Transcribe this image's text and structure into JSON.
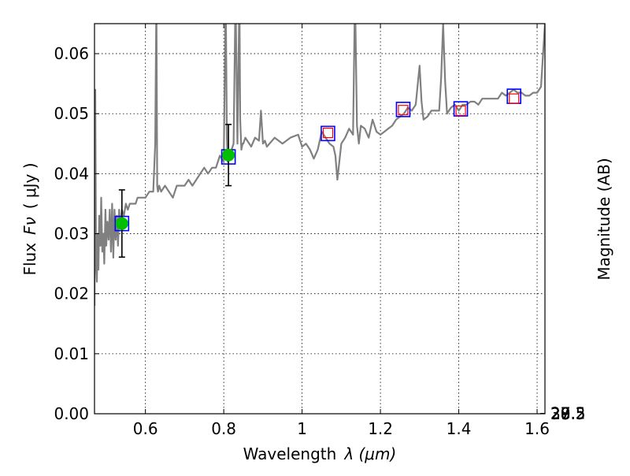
{
  "chart_data": {
    "type": "line",
    "xlabel_text": "Wavelength",
    "xlabel_math": "λ (μm)",
    "ylabel_text": "Flux",
    "ylabel_math": "Fν",
    "ylabel_unit": "( μJy )",
    "y2label": "Magnitude (AB)",
    "xlim": [
      0.47,
      1.62
    ],
    "ylim": [
      0.0,
      0.065
    ],
    "grid": true,
    "x_ticks": [
      {
        "value": 0.6,
        "label": "0.6"
      },
      {
        "value": 0.8,
        "label": "0.8"
      },
      {
        "value": 1.0,
        "label": "1"
      },
      {
        "value": 1.2,
        "label": "1.2"
      },
      {
        "value": 1.4,
        "label": "1.4"
      },
      {
        "value": 1.6,
        "label": "1.6"
      }
    ],
    "y_ticks": [
      {
        "value": 0.0,
        "label": "0.00"
      },
      {
        "value": 0.01,
        "label": "0.01"
      },
      {
        "value": 0.02,
        "label": "0.02"
      },
      {
        "value": 0.03,
        "label": "0.03"
      },
      {
        "value": 0.04,
        "label": "0.04"
      },
      {
        "value": 0.05,
        "label": "0.05"
      },
      {
        "value": 0.06,
        "label": "0.06"
      }
    ],
    "y2_ticks": [
      {
        "value": 27.0,
        "label": "27"
      },
      {
        "value": 27.2,
        "label": "27.2"
      },
      {
        "value": 27.5,
        "label": "27.5"
      },
      {
        "value": 28.0,
        "label": "28"
      },
      {
        "value": 28.5,
        "label": "28.5"
      },
      {
        "value": 29.0,
        "label": "29"
      },
      {
        "value": 30.0,
        "label": "30"
      }
    ],
    "series": [
      {
        "kind": "model-spectrum",
        "color": "#808080",
        "x": [
          0.47,
          0.472,
          0.474,
          0.476,
          0.478,
          0.48,
          0.482,
          0.485,
          0.487,
          0.49,
          0.493,
          0.495,
          0.498,
          0.5,
          0.503,
          0.506,
          0.509,
          0.512,
          0.515,
          0.518,
          0.521,
          0.524,
          0.527,
          0.53,
          0.533,
          0.536,
          0.54,
          0.545,
          0.55,
          0.555,
          0.56,
          0.565,
          0.57,
          0.575,
          0.58,
          0.59,
          0.6,
          0.61,
          0.62,
          0.625,
          0.628,
          0.63,
          0.632,
          0.635,
          0.64,
          0.65,
          0.66,
          0.67,
          0.68,
          0.69,
          0.7,
          0.71,
          0.72,
          0.73,
          0.74,
          0.75,
          0.76,
          0.77,
          0.78,
          0.79,
          0.8,
          0.805,
          0.808,
          0.81,
          0.815,
          0.82,
          0.825,
          0.83,
          0.835,
          0.84,
          0.842,
          0.845,
          0.848,
          0.85,
          0.855,
          0.86,
          0.87,
          0.88,
          0.89,
          0.895,
          0.9,
          0.905,
          0.91,
          0.93,
          0.95,
          0.97,
          0.99,
          1.0,
          1.01,
          1.02,
          1.03,
          1.04,
          1.05,
          1.06,
          1.07,
          1.08,
          1.085,
          1.09,
          1.1,
          1.11,
          1.12,
          1.13,
          1.135,
          1.14,
          1.145,
          1.15,
          1.16,
          1.17,
          1.18,
          1.19,
          1.2,
          1.21,
          1.22,
          1.23,
          1.24,
          1.25,
          1.26,
          1.27,
          1.28,
          1.29,
          1.3,
          1.305,
          1.31,
          1.32,
          1.33,
          1.34,
          1.35,
          1.355,
          1.36,
          1.365,
          1.37,
          1.38,
          1.39,
          1.4,
          1.41,
          1.42,
          1.43,
          1.44,
          1.45,
          1.46,
          1.47,
          1.48,
          1.49,
          1.5,
          1.51,
          1.52,
          1.53,
          1.54,
          1.55,
          1.56,
          1.57,
          1.58,
          1.59,
          1.6,
          1.61,
          1.62
        ],
        "y": [
          0.018,
          0.054,
          0.025,
          0.022,
          0.03,
          0.024,
          0.033,
          0.028,
          0.036,
          0.027,
          0.03,
          0.025,
          0.034,
          0.028,
          0.032,
          0.029,
          0.034,
          0.027,
          0.035,
          0.026,
          0.034,
          0.029,
          0.033,
          0.028,
          0.034,
          0.031,
          0.034,
          0.033,
          0.035,
          0.034,
          0.035,
          0.035,
          0.035,
          0.035,
          0.036,
          0.036,
          0.036,
          0.037,
          0.037,
          0.045,
          0.07,
          0.038,
          0.037,
          0.038,
          0.037,
          0.038,
          0.037,
          0.036,
          0.038,
          0.038,
          0.038,
          0.039,
          0.038,
          0.039,
          0.04,
          0.041,
          0.04,
          0.041,
          0.041,
          0.043,
          0.042,
          0.07,
          0.046,
          0.042,
          0.043,
          0.044,
          0.045,
          0.07,
          0.045,
          0.07,
          0.049,
          0.044,
          0.045,
          0.045,
          0.046,
          0.0455,
          0.0445,
          0.046,
          0.0455,
          0.0505,
          0.045,
          0.0455,
          0.0445,
          0.046,
          0.045,
          0.046,
          0.0465,
          0.0445,
          0.045,
          0.044,
          0.0425,
          0.044,
          0.047,
          0.046,
          0.045,
          0.0445,
          0.043,
          0.039,
          0.045,
          0.046,
          0.0475,
          0.0465,
          0.07,
          0.048,
          0.045,
          0.048,
          0.0475,
          0.046,
          0.049,
          0.047,
          0.0465,
          0.047,
          0.0475,
          0.048,
          0.049,
          0.0495,
          0.05,
          0.051,
          0.0505,
          0.0515,
          0.058,
          0.052,
          0.049,
          0.0495,
          0.0505,
          0.0505,
          0.0505,
          0.056,
          0.065,
          0.0555,
          0.05,
          0.051,
          0.0515,
          0.0505,
          0.0515,
          0.0515,
          0.052,
          0.052,
          0.0515,
          0.0525,
          0.0525,
          0.0525,
          0.0525,
          0.0525,
          0.0535,
          0.053,
          0.0535,
          0.054,
          0.0535,
          0.0535,
          0.053,
          0.053,
          0.0535,
          0.0535,
          0.0545,
          0.065
        ]
      },
      {
        "kind": "model-photometry",
        "marker": "blue-square",
        "color": "#0000ff",
        "x": [
          0.54,
          0.812,
          1.066,
          1.258,
          1.405,
          1.541
        ],
        "y": [
          0.0317,
          0.0428,
          0.0467,
          0.0507,
          0.0508,
          0.0529
        ]
      },
      {
        "kind": "red-square",
        "marker": "red-square",
        "color": "#ff0000",
        "x": [
          1.066,
          1.258,
          1.405,
          1.541
        ],
        "y": [
          0.0468,
          0.0506,
          0.0505,
          0.0525
        ]
      },
      {
        "kind": "observed-photometry",
        "marker": "green-circle",
        "color": "#00bf00",
        "x": [
          0.54,
          0.812
        ],
        "y": [
          0.0317,
          0.0431
        ],
        "yerr": [
          0.0056,
          0.0051
        ]
      }
    ]
  }
}
